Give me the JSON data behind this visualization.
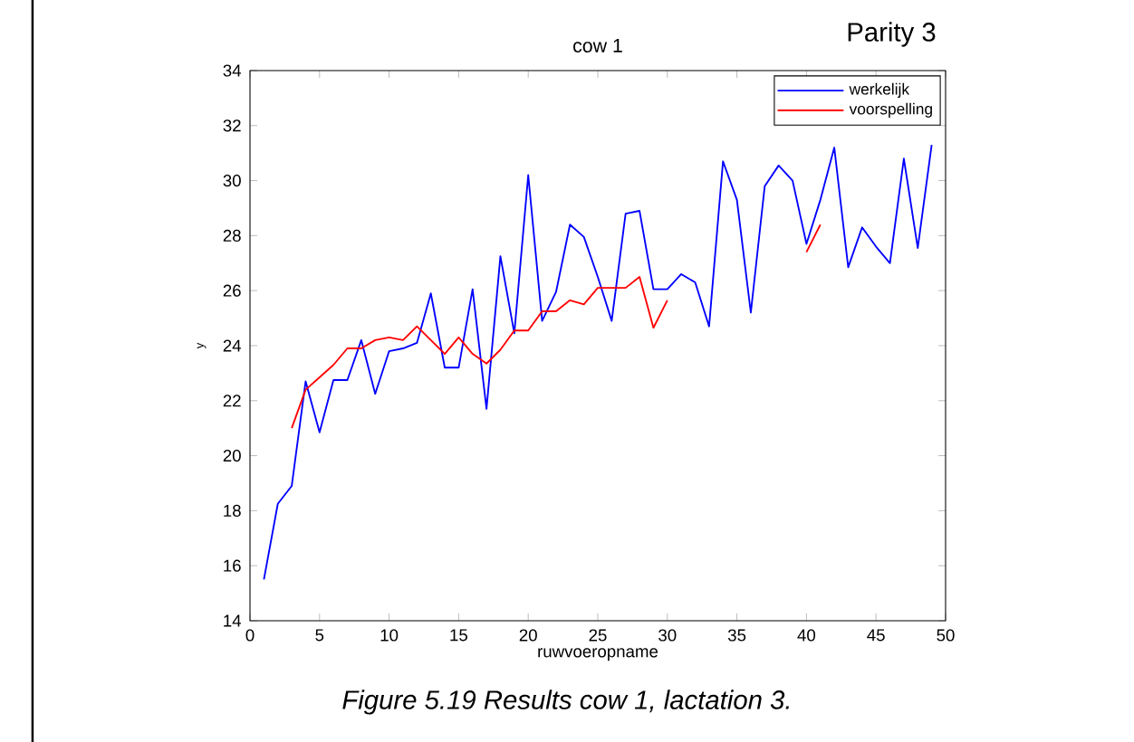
{
  "chart_data": {
    "type": "line",
    "title": "cow 1",
    "xlabel": "ruwvoeropname",
    "ylabel": "y",
    "xlim": [
      0,
      50
    ],
    "ylim": [
      14,
      34
    ],
    "xticks": [
      0,
      5,
      10,
      15,
      20,
      25,
      30,
      35,
      40,
      45,
      50
    ],
    "yticks": [
      14,
      16,
      18,
      20,
      22,
      24,
      26,
      28,
      30,
      32,
      34
    ],
    "grid": false,
    "legend": "top right",
    "marker": "none",
    "line_style": "solid",
    "annotations": [
      "Parity 3",
      "Figure 5.19 Results cow 1, lactation 3."
    ],
    "series": [
      {
        "name": "werkelijk",
        "color": "#0000ff",
        "x": [
          1,
          2,
          3,
          4,
          5,
          6,
          7,
          8,
          9,
          10,
          11,
          12,
          13,
          14,
          15,
          16,
          17,
          18,
          19,
          20,
          21,
          22,
          23,
          24,
          25,
          26,
          27,
          28,
          29,
          30,
          31,
          32,
          33,
          34,
          35,
          36,
          37,
          38,
          39,
          40,
          41,
          42,
          43,
          44,
          45,
          46,
          47,
          48,
          49
        ],
        "values": [
          15.5,
          18.25,
          18.9,
          22.7,
          20.85,
          22.75,
          22.75,
          24.2,
          22.25,
          23.8,
          23.9,
          24.1,
          25.9,
          23.2,
          23.2,
          26.05,
          21.7,
          27.25,
          24.45,
          30.2,
          24.9,
          25.95,
          28.4,
          27.95,
          26.5,
          24.9,
          28.8,
          28.9,
          26.05,
          26.05,
          26.6,
          26.3,
          24.7,
          30.7,
          29.3,
          25.2,
          29.8,
          30.55,
          30.0,
          27.7,
          29.3,
          31.2,
          26.85,
          28.3,
          27.6,
          27.0,
          30.8,
          27.55,
          31.3
        ]
      },
      {
        "name": "voorspelling",
        "color": "#ff0000",
        "x": [
          3,
          4,
          5,
          6,
          7,
          8,
          9,
          10,
          11,
          12,
          13,
          14,
          15,
          16,
          17,
          18,
          19,
          20,
          21,
          22,
          23,
          24,
          25,
          26,
          27,
          28,
          29,
          30,
          31,
          32,
          33,
          34,
          35,
          36,
          37,
          38,
          39,
          40,
          41
        ],
        "values": [
          21.0,
          22.4,
          22.85,
          23.3,
          23.9,
          23.9,
          24.2,
          24.3,
          24.2,
          24.7,
          24.2,
          23.7,
          24.3,
          23.7,
          23.35,
          23.85,
          24.55,
          24.55,
          25.25,
          25.25,
          25.65,
          25.5,
          26.1,
          26.1,
          26.1,
          26.5,
          24.65,
          25.65,
          null,
          null,
          null,
          null,
          null,
          null,
          null,
          null,
          null,
          27.4,
          28.4
        ]
      }
    ]
  }
}
